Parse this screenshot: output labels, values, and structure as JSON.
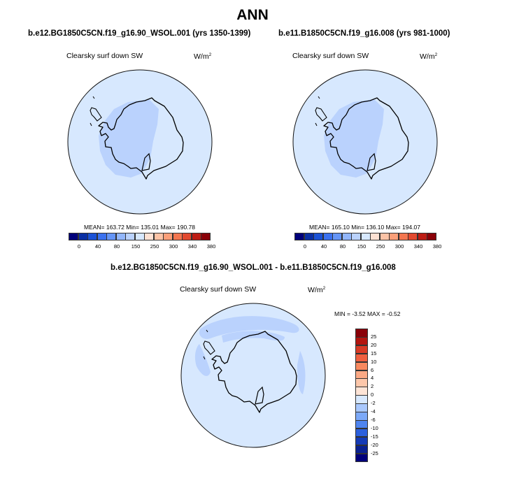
{
  "chart_data": [
    {
      "type": "polar-contour-map",
      "main_title": "ANN",
      "title": "b.e12.BG1850C5CN.f19_g16.90_WSOL.001 (yrs 1350-1399)",
      "field_label": "Clearsky surf down SW",
      "units": "W/m",
      "units_exp": "2",
      "stats": {
        "mean": 163.72,
        "min": 135.01,
        "max": 190.78,
        "text": "MEAN= 163.72  Min= 135.01  Max= 190.78"
      },
      "levels": [
        "0",
        "40",
        "80",
        "150",
        "250",
        "300",
        "340",
        "380"
      ],
      "colors": [
        "#00007a",
        "#0a2fa4",
        "#1b52d6",
        "#3c72ef",
        "#6595f7",
        "#92b6fb",
        "#bad2fd",
        "#d7e8fe",
        "#fde1d3",
        "#fcc3a6",
        "#fb9f79",
        "#f37650",
        "#e2492f",
        "#bd1c14",
        "#8a0008"
      ],
      "region_colors": {
        "ocean": "#d7e8fe",
        "interior": "#bad2fd"
      }
    },
    {
      "type": "polar-contour-map",
      "title": "b.e11.B1850C5CN.f19_g16.008 (yrs 981-1000)",
      "field_label": "Clearsky surf down SW",
      "units": "W/m",
      "units_exp": "2",
      "stats": {
        "mean": 165.1,
        "min": 136.1,
        "max": 194.07,
        "text": "MEAN= 165.10  Min= 136.10  Max= 194.07"
      },
      "levels": [
        "0",
        "40",
        "80",
        "150",
        "250",
        "300",
        "340",
        "380"
      ],
      "colors": [
        "#00007a",
        "#0a2fa4",
        "#1b52d6",
        "#3c72ef",
        "#6595f7",
        "#92b6fb",
        "#bad2fd",
        "#d7e8fe",
        "#fde1d3",
        "#fcc3a6",
        "#fb9f79",
        "#f37650",
        "#e2492f",
        "#bd1c14",
        "#8a0008"
      ],
      "region_colors": {
        "ocean": "#d7e8fe",
        "interior": "#bad2fd"
      }
    },
    {
      "type": "polar-contour-map",
      "title": "b.e12.BG1850C5CN.f19_g16.90_WSOL.001 - b.e11.B1850C5CN.f19_g16.008",
      "field_label": "Clearsky surf down SW",
      "units": "W/m",
      "units_exp": "2",
      "stats": {
        "min": -3.52,
        "max": -0.52,
        "text": "MIN =  -3.52 MAX =  -0.52"
      },
      "levels": [
        "25",
        "20",
        "15",
        "10",
        "6",
        "4",
        "2",
        "0",
        "-2",
        "-4",
        "-6",
        "-10",
        "-15",
        "-20",
        "-25"
      ],
      "colors": [
        "#8a0008",
        "#b3150f",
        "#d83a25",
        "#ef6040",
        "#f8895f",
        "#fba985",
        "#fdc7aa",
        "#fde4d6",
        "#d7e8fe",
        "#a9c8fd",
        "#7ca9f8",
        "#4f85f0",
        "#2c60dd",
        "#153bb6",
        "#0a2190",
        "#00007a"
      ],
      "region_colors": {
        "ocean": "#d7e8fe",
        "band": "#bad2fd"
      }
    }
  ]
}
